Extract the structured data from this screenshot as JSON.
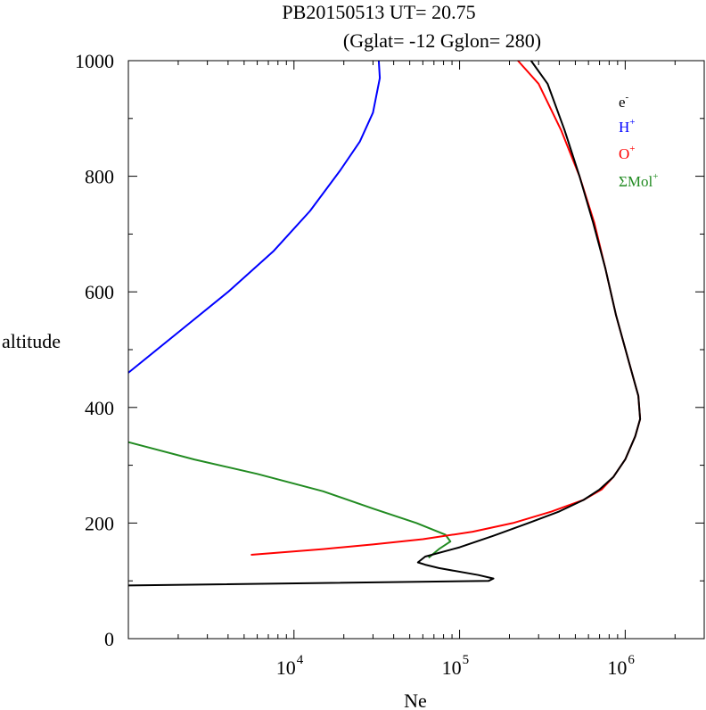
{
  "chart_data": {
    "type": "line",
    "title": "PB20150513   UT=  20.75",
    "subtitle": "(Gglat= -12   Gglon=  280)",
    "xlabel": "Ne",
    "ylabel": "altitude",
    "xscale": "log",
    "xlim": [
      1000,
      3000000
    ],
    "ylim": [
      0,
      1000
    ],
    "x_ticks": [
      {
        "value": 10000,
        "base": "10",
        "exp": "4"
      },
      {
        "value": 100000,
        "base": "10",
        "exp": "5"
      },
      {
        "value": 1000000,
        "base": "10",
        "exp": "6"
      }
    ],
    "y_ticks": [
      {
        "value": 0,
        "label": "0"
      },
      {
        "value": 200,
        "label": "200"
      },
      {
        "value": 400,
        "label": "400"
      },
      {
        "value": 600,
        "label": "600"
      },
      {
        "value": 800,
        "label": "800"
      },
      {
        "value": 1000,
        "label": "1000"
      }
    ],
    "legend_position": "top-right",
    "series": [
      {
        "name": "e-",
        "base": "e",
        "sup": "-",
        "color": "#000000",
        "points": [
          [
            1000,
            92
          ],
          [
            150000,
            100
          ],
          [
            160000,
            104
          ],
          [
            130000,
            110
          ],
          [
            90000,
            118
          ],
          [
            75000,
            122
          ],
          [
            62000,
            128
          ],
          [
            56000,
            132
          ],
          [
            62000,
            142
          ],
          [
            100000,
            158
          ],
          [
            160000,
            178
          ],
          [
            260000,
            200
          ],
          [
            400000,
            220
          ],
          [
            560000,
            240
          ],
          [
            700000,
            258
          ],
          [
            850000,
            280
          ],
          [
            1000000,
            310
          ],
          [
            1150000,
            350
          ],
          [
            1230000,
            380
          ],
          [
            1200000,
            420
          ],
          [
            1050000,
            480
          ],
          [
            880000,
            560
          ],
          [
            760000,
            640
          ],
          [
            640000,
            720
          ],
          [
            530000,
            800
          ],
          [
            430000,
            880
          ],
          [
            340000,
            960
          ],
          [
            270000,
            1000
          ]
        ]
      },
      {
        "name": "H+",
        "base": "H",
        "sup": "+",
        "color": "#0000ff",
        "points": [
          [
            1000,
            460
          ],
          [
            2000,
            530
          ],
          [
            4000,
            600
          ],
          [
            7500,
            670
          ],
          [
            12500,
            740
          ],
          [
            19000,
            810
          ],
          [
            25000,
            860
          ],
          [
            30000,
            910
          ],
          [
            33000,
            970
          ],
          [
            32500,
            1000
          ]
        ]
      },
      {
        "name": "O+",
        "base": "O",
        "sup": "+",
        "color": "#ff0000",
        "points": [
          [
            5500,
            145
          ],
          [
            15000,
            155
          ],
          [
            30000,
            163
          ],
          [
            60000,
            172
          ],
          [
            120000,
            185
          ],
          [
            210000,
            200
          ],
          [
            360000,
            220
          ],
          [
            560000,
            240
          ],
          [
            720000,
            258
          ],
          [
            850000,
            280
          ],
          [
            1000000,
            310
          ],
          [
            1150000,
            350
          ],
          [
            1230000,
            380
          ],
          [
            1200000,
            420
          ],
          [
            1050000,
            480
          ],
          [
            880000,
            560
          ],
          [
            760000,
            640
          ],
          [
            650000,
            720
          ],
          [
            530000,
            800
          ],
          [
            410000,
            880
          ],
          [
            300000,
            960
          ],
          [
            225000,
            1000
          ]
        ]
      },
      {
        "name": "ΣMol+",
        "base": "ΣMol",
        "sup": "+",
        "color": "#228b22",
        "points": [
          [
            1000,
            340
          ],
          [
            2500,
            310
          ],
          [
            6000,
            285
          ],
          [
            15000,
            255
          ],
          [
            30000,
            225
          ],
          [
            55000,
            200
          ],
          [
            82000,
            180
          ],
          [
            88000,
            168
          ],
          [
            75000,
            155
          ],
          [
            65000,
            140
          ]
        ]
      }
    ]
  }
}
